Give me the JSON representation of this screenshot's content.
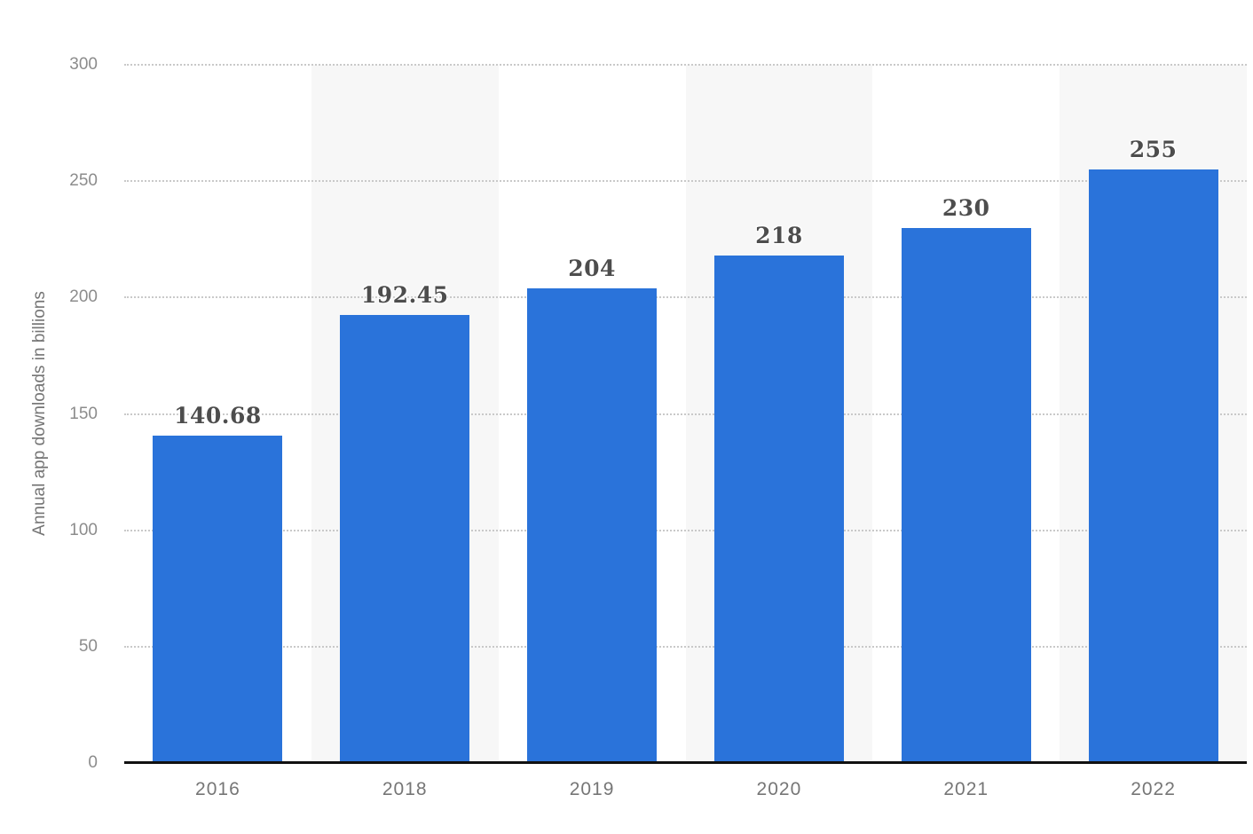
{
  "chart_data": {
    "type": "bar",
    "categories": [
      "2016",
      "2018",
      "2019",
      "2020",
      "2021",
      "2022"
    ],
    "values": [
      140.68,
      192.45,
      204,
      218,
      230,
      255
    ],
    "value_labels": [
      "140.68",
      "192.45",
      "204",
      "218",
      "230",
      "255"
    ],
    "title": "",
    "xlabel": "",
    "ylabel": "Annual app downloads in billions",
    "ylim": [
      0,
      300
    ],
    "yticks": [
      0,
      50,
      100,
      150,
      200,
      250,
      300
    ],
    "grid": "horizontal-dotted",
    "legend": "none",
    "background_stripes": "alternating columns behind 2018, 2020, 2022",
    "colors": {
      "bar": "#2a73da",
      "stripe": "#f7f7f7",
      "gridline": "#c9c9c9",
      "axis_line": "#111111",
      "value_label": "#4d4d4d",
      "tick_label": "#8c8c8c",
      "category_label": "#767676",
      "ylabel_color": "#757575"
    }
  }
}
